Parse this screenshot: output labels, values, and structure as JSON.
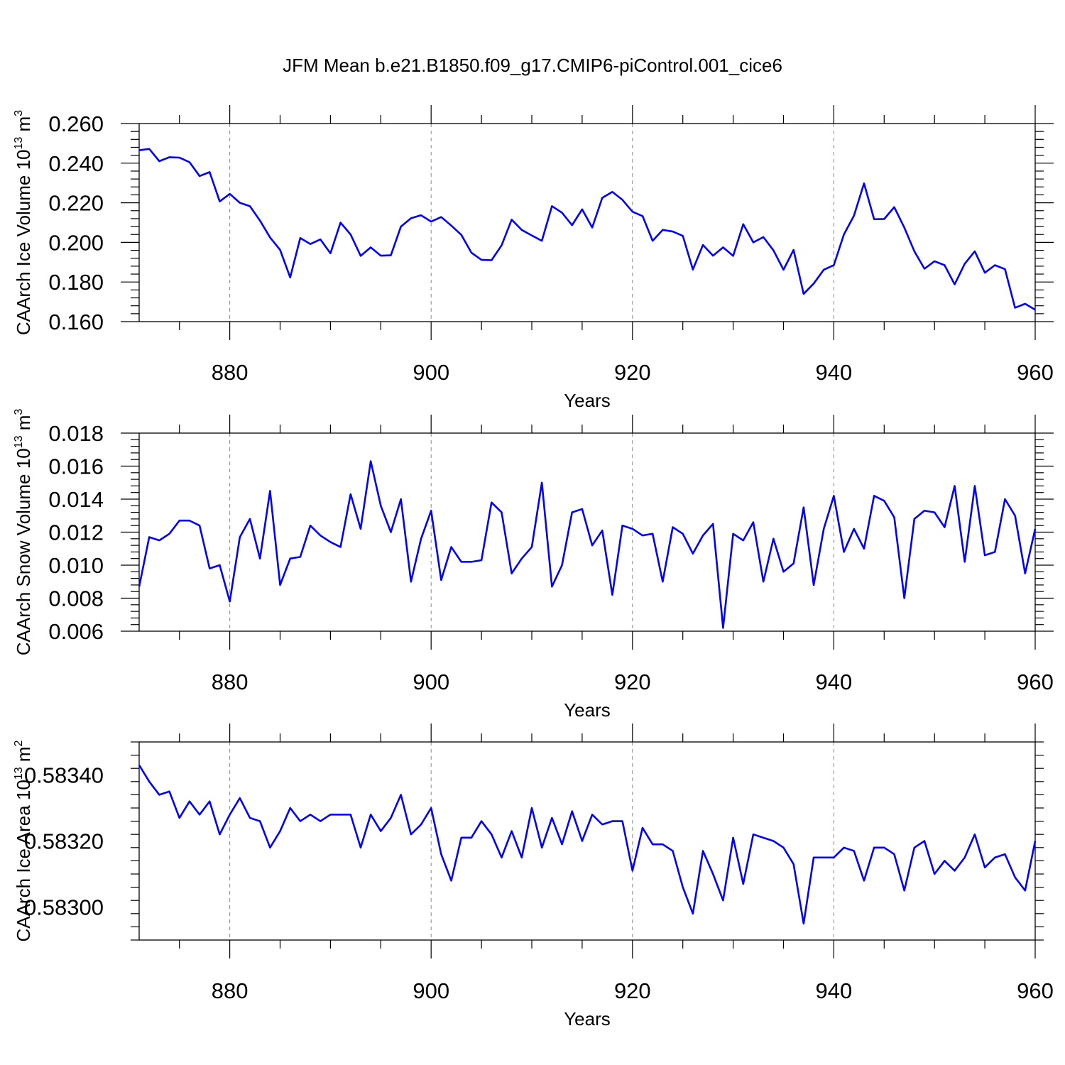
{
  "title": "JFM Mean b.e21.B1850.f09_g17.CMIP6-piControl.001_cice6",
  "colors": {
    "line": "#0000ff",
    "axis": "#000000",
    "grid": "#888888"
  },
  "chart_data": [
    {
      "type": "line",
      "ylabel": {
        "main": "CAArch Ice Volume 10",
        "sup": "13",
        "unit": " m",
        "unit_sup": "3"
      },
      "xlabel": "Years",
      "xlim": [
        871,
        960
      ],
      "ylim": [
        0.16,
        0.26
      ],
      "xticks": [
        880,
        900,
        920,
        940,
        960
      ],
      "yticks": [
        0.16,
        0.18,
        0.2,
        0.22,
        0.24,
        0.26
      ],
      "ytick_labels": [
        "0.160",
        "0.180",
        "0.200",
        "0.220",
        "0.240",
        "0.260"
      ],
      "grid_x": [
        880,
        900,
        920,
        940
      ],
      "series": [
        {
          "name": "Ice Volume",
          "x_start": 871,
          "values": [
            0.2465,
            0.2472,
            0.241,
            0.243,
            0.2428,
            0.2405,
            0.2335,
            0.2355,
            0.2207,
            0.2245,
            0.22,
            0.2183,
            0.211,
            0.2025,
            0.1962,
            0.1823,
            0.2022,
            0.1992,
            0.2015,
            0.1945,
            0.21,
            0.204,
            0.1932,
            0.1975,
            0.1933,
            0.1935,
            0.208,
            0.2122,
            0.2137,
            0.2105,
            0.2128,
            0.2085,
            0.2038,
            0.1948,
            0.1912,
            0.191,
            0.1985,
            0.2115,
            0.2063,
            0.2035,
            0.2008,
            0.2183,
            0.215,
            0.2087,
            0.2167,
            0.2075,
            0.2225,
            0.2255,
            0.2215,
            0.2155,
            0.2133,
            0.2008,
            0.2063,
            0.2055,
            0.2033,
            0.1863,
            0.1987,
            0.1933,
            0.1975,
            0.1932,
            0.2092,
            0.2,
            0.2027,
            0.196,
            0.1862,
            0.1962,
            0.174,
            0.1792,
            0.1862,
            0.1885,
            0.204,
            0.2135,
            0.2298,
            0.2117,
            0.2118,
            0.2178,
            0.2075,
            0.1955,
            0.1867,
            0.1905,
            0.1885,
            0.1788,
            0.1892,
            0.1955,
            0.1847,
            0.1885,
            0.1865,
            0.167,
            0.169,
            0.166
          ]
        }
      ]
    },
    {
      "type": "line",
      "ylabel": {
        "main": "CAArch Snow Volume 10",
        "sup": "13",
        "unit": " m",
        "unit_sup": "3"
      },
      "xlabel": "Years",
      "xlim": [
        871,
        960
      ],
      "ylim": [
        0.006,
        0.018
      ],
      "xticks": [
        880,
        900,
        920,
        940,
        960
      ],
      "yticks": [
        0.006,
        0.008,
        0.01,
        0.012,
        0.014,
        0.016,
        0.018
      ],
      "ytick_labels": [
        "0.006",
        "0.008",
        "0.010",
        "0.012",
        "0.014",
        "0.016",
        "0.018"
      ],
      "grid_x": [
        880,
        900,
        920,
        940
      ],
      "series": [
        {
          "name": "Snow Volume",
          "x_start": 871,
          "values": [
            0.0087,
            0.0117,
            0.0115,
            0.0119,
            0.0127,
            0.0127,
            0.0124,
            0.0098,
            0.01,
            0.0078,
            0.0117,
            0.0128,
            0.0104,
            0.0145,
            0.0088,
            0.0104,
            0.0105,
            0.0124,
            0.0118,
            0.0114,
            0.0111,
            0.0143,
            0.0122,
            0.0163,
            0.0136,
            0.012,
            0.014,
            0.009,
            0.0116,
            0.0133,
            0.0091,
            0.0111,
            0.0102,
            0.0102,
            0.0103,
            0.0138,
            0.0132,
            0.0095,
            0.0104,
            0.0111,
            0.015,
            0.0087,
            0.01,
            0.0132,
            0.0134,
            0.0112,
            0.0121,
            0.0082,
            0.0124,
            0.0122,
            0.0118,
            0.0119,
            0.009,
            0.0123,
            0.0119,
            0.0107,
            0.0118,
            0.0125,
            0.0062,
            0.0119,
            0.0115,
            0.0126,
            0.009,
            0.0116,
            0.0096,
            0.0101,
            0.0135,
            0.0088,
            0.0122,
            0.0142,
            0.0108,
            0.0122,
            0.011,
            0.0142,
            0.0139,
            0.0129,
            0.008,
            0.0128,
            0.0133,
            0.0132,
            0.0123,
            0.0148,
            0.0102,
            0.0148,
            0.0106,
            0.0108,
            0.014,
            0.013,
            0.0095,
            0.0122
          ]
        }
      ]
    },
    {
      "type": "line",
      "ylabel": {
        "main": "CAArch Ice Area 10",
        "sup": "13",
        "unit": " m",
        "unit_sup": "2"
      },
      "xlabel": "Years",
      "xlim": [
        871,
        960
      ],
      "ylim": [
        0.5829,
        0.5835
      ],
      "xticks": [
        880,
        900,
        920,
        940,
        960
      ],
      "yticks": [
        0.583,
        0.5832,
        0.5834
      ],
      "ytick_labels": [
        "0.58300",
        "0.58320",
        "0.58340"
      ],
      "grid_x": [
        880,
        900,
        920,
        940
      ],
      "series": [
        {
          "name": "Ice Area",
          "x_start": 871,
          "values": [
            0.58343,
            0.58338,
            0.58334,
            0.58335,
            0.58327,
            0.58332,
            0.58328,
            0.58332,
            0.58322,
            0.58328,
            0.58333,
            0.58327,
            0.58326,
            0.58318,
            0.58323,
            0.5833,
            0.58326,
            0.58328,
            0.58326,
            0.58328,
            0.58328,
            0.58328,
            0.58318,
            0.58328,
            0.58323,
            0.58327,
            0.58334,
            0.58322,
            0.58325,
            0.5833,
            0.58316,
            0.58308,
            0.58321,
            0.58321,
            0.58326,
            0.58322,
            0.58315,
            0.58323,
            0.58315,
            0.5833,
            0.58318,
            0.58327,
            0.58319,
            0.58329,
            0.5832,
            0.58328,
            0.58325,
            0.58326,
            0.58326,
            0.58311,
            0.58324,
            0.58319,
            0.58319,
            0.58317,
            0.58306,
            0.58298,
            0.58317,
            0.5831,
            0.58302,
            0.58321,
            0.58307,
            0.58322,
            0.58321,
            0.5832,
            0.58318,
            0.58313,
            0.58295,
            0.58315,
            0.58315,
            0.58315,
            0.58318,
            0.58317,
            0.58308,
            0.58318,
            0.58318,
            0.58316,
            0.58305,
            0.58318,
            0.5832,
            0.5831,
            0.58314,
            0.58311,
            0.58315,
            0.58322,
            0.58312,
            0.58315,
            0.58316,
            0.58309,
            0.58305,
            0.5832
          ]
        }
      ]
    }
  ]
}
